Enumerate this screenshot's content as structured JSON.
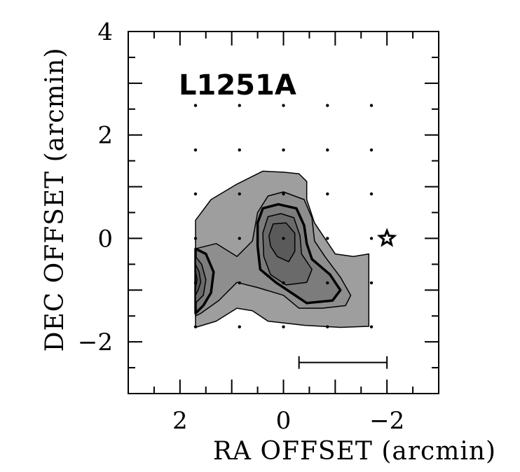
{
  "chart_data": {
    "type": "contour",
    "title": "L1251A",
    "xlabel": "RA OFFSET (arcmin)",
    "ylabel": "DEC OFFSET (arcmin)",
    "xlim": [
      3,
      -3
    ],
    "ylim": [
      -3,
      4
    ],
    "x_reversed": true,
    "xtick_labels": [
      {
        "value": 2,
        "label": "2"
      },
      {
        "value": 0,
        "label": "0"
      },
      {
        "value": -2,
        "label": "−2"
      }
    ],
    "ytick_labels": [
      {
        "value": 4,
        "label": "4"
      },
      {
        "value": 2,
        "label": "2"
      },
      {
        "value": 0,
        "label": "0"
      },
      {
        "value": -2,
        "label": "−2"
      }
    ],
    "grid_points": {
      "x": [
        1.7,
        0.85,
        0,
        -0.85,
        -1.7
      ],
      "y": [
        2.57,
        1.71,
        0.86,
        0,
        -0.86,
        -1.71
      ]
    },
    "star_marker": {
      "x": -2.0,
      "y": 0.0
    },
    "scale_bar": {
      "x_from": -0.3,
      "x_to": -2.0,
      "y": -2.4
    },
    "contour_fill_colors": [
      "#9e9e9e",
      "#8e8e8e",
      "#7c7c7c",
      "#6a6a6a",
      "#5a5a5a",
      "#4a4a4a"
    ],
    "contours": [
      {
        "level": 1,
        "fill": "#9e9e9e",
        "stroke_width": 1.5,
        "path": [
          [
            1.7,
            0.35
          ],
          [
            1.4,
            0.75
          ],
          [
            0.9,
            1.05
          ],
          [
            0.6,
            1.2
          ],
          [
            0.4,
            1.3
          ],
          [
            0.0,
            1.28
          ],
          [
            -0.3,
            1.25
          ],
          [
            -0.45,
            1.1
          ],
          [
            -0.45,
            0.75
          ],
          [
            -0.6,
            0.3
          ],
          [
            -1.0,
            -0.3
          ],
          [
            -1.35,
            -0.35
          ],
          [
            -1.65,
            -0.3
          ],
          [
            -1.65,
            -1.7
          ],
          [
            -1.1,
            -1.72
          ],
          [
            -0.4,
            -1.68
          ],
          [
            0.3,
            -1.6
          ],
          [
            0.6,
            -1.4
          ],
          [
            0.9,
            -1.35
          ],
          [
            1.3,
            -1.6
          ],
          [
            1.7,
            -1.72
          ]
        ]
      },
      {
        "level": 2,
        "fill": "#8e8e8e",
        "stroke_width": 1.5,
        "path": [
          [
            1.7,
            -0.2
          ],
          [
            1.3,
            -0.1
          ],
          [
            0.9,
            -0.35
          ],
          [
            0.6,
            -0.05
          ],
          [
            0.5,
            0.5
          ],
          [
            0.3,
            0.82
          ],
          [
            0.0,
            0.9
          ],
          [
            -0.4,
            0.75
          ],
          [
            -0.55,
            0.4
          ],
          [
            -0.6,
            -0.05
          ],
          [
            -0.8,
            -0.35
          ],
          [
            -1.1,
            -0.75
          ],
          [
            -1.3,
            -1.1
          ],
          [
            -1.2,
            -1.3
          ],
          [
            -0.75,
            -1.35
          ],
          [
            -0.3,
            -1.35
          ],
          [
            0.0,
            -1.1
          ],
          [
            0.5,
            -0.95
          ],
          [
            0.9,
            -0.85
          ],
          [
            1.25,
            -1.2
          ],
          [
            1.6,
            -1.45
          ],
          [
            1.7,
            -1.5
          ]
        ]
      },
      {
        "level": 3,
        "fill": "#7c7c7c",
        "stroke_width": 3.5,
        "path": [
          [
            0.5,
            0.3
          ],
          [
            0.4,
            0.58
          ],
          [
            0.1,
            0.66
          ],
          [
            -0.25,
            0.58
          ],
          [
            -0.4,
            0.25
          ],
          [
            -0.45,
            -0.1
          ],
          [
            -0.55,
            -0.4
          ],
          [
            -0.9,
            -0.7
          ],
          [
            -1.1,
            -1.0
          ],
          [
            -0.95,
            -1.2
          ],
          [
            -0.45,
            -1.25
          ],
          [
            -0.15,
            -1.05
          ],
          [
            0.15,
            -0.85
          ],
          [
            0.45,
            -0.6
          ],
          [
            0.5,
            -0.15
          ]
        ]
      },
      {
        "level": 4,
        "fill": "#6a6a6a",
        "stroke_width": 1.5,
        "path": [
          [
            0.4,
            0.1
          ],
          [
            0.3,
            0.42
          ],
          [
            0.05,
            0.48
          ],
          [
            -0.2,
            0.4
          ],
          [
            -0.32,
            0.05
          ],
          [
            -0.35,
            -0.3
          ],
          [
            -0.55,
            -0.6
          ],
          [
            -0.45,
            -0.85
          ],
          [
            -0.05,
            -0.9
          ],
          [
            0.25,
            -0.7
          ],
          [
            0.38,
            -0.35
          ]
        ]
      },
      {
        "level": 5,
        "fill": "#5a5a5a",
        "stroke_width": 1.5,
        "path": [
          [
            0.28,
            0.05
          ],
          [
            0.2,
            0.28
          ],
          [
            -0.05,
            0.3
          ],
          [
            -0.22,
            0.1
          ],
          [
            -0.22,
            -0.25
          ],
          [
            -0.1,
            -0.45
          ],
          [
            0.12,
            -0.35
          ],
          [
            0.25,
            -0.15
          ]
        ]
      },
      {
        "level": 3,
        "fill": "#7c7c7c",
        "stroke_width": 3.5,
        "path": [
          [
            1.7,
            -0.2
          ],
          [
            1.5,
            -0.3
          ],
          [
            1.35,
            -0.65
          ],
          [
            1.4,
            -1.05
          ],
          [
            1.55,
            -1.3
          ],
          [
            1.7,
            -1.45
          ]
        ]
      },
      {
        "level": 4,
        "fill": "#6a6a6a",
        "stroke_width": 1.5,
        "path": [
          [
            1.7,
            -0.35
          ],
          [
            1.58,
            -0.5
          ],
          [
            1.5,
            -0.8
          ],
          [
            1.55,
            -1.1
          ],
          [
            1.7,
            -1.25
          ]
        ]
      },
      {
        "level": 5,
        "fill": "#5a5a5a",
        "stroke_width": 1.5,
        "path": [
          [
            1.7,
            -0.5
          ],
          [
            1.63,
            -0.65
          ],
          [
            1.6,
            -0.85
          ],
          [
            1.65,
            -1.0
          ],
          [
            1.7,
            -1.1
          ]
        ]
      },
      {
        "level": 6,
        "fill": "#4a4a4a",
        "stroke_width": 1.5,
        "path": [
          [
            1.7,
            -0.62
          ],
          [
            1.67,
            -0.8
          ],
          [
            1.7,
            -0.95
          ]
        ]
      }
    ]
  }
}
